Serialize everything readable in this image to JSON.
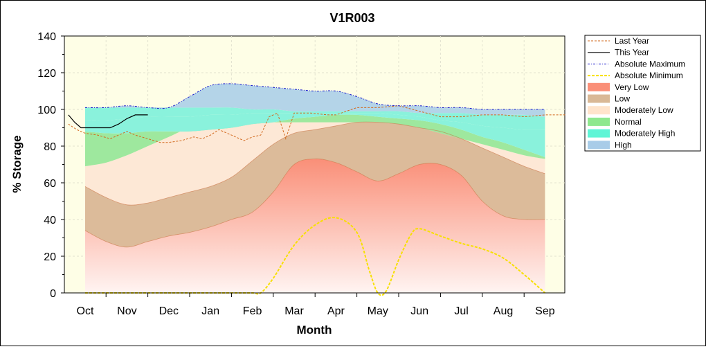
{
  "chart_data": {
    "type": "area",
    "title": "V1R003",
    "xlabel": "Month",
    "ylabel": "% Storage",
    "ylim": [
      0,
      140
    ],
    "yticks": [
      0,
      20,
      40,
      60,
      80,
      100,
      120,
      140
    ],
    "months": [
      "Oct",
      "Nov",
      "Dec",
      "Jan",
      "Feb",
      "Mar",
      "Apr",
      "May",
      "Jun",
      "Jul",
      "Aug",
      "Sep"
    ],
    "grid": true,
    "legend_position": "right",
    "band_x": [
      0,
      0.5,
      1,
      1.5,
      2,
      2.5,
      3,
      3.5,
      4,
      4.5,
      5,
      5.5,
      6,
      6.5,
      7,
      7.5,
      8,
      8.5,
      9,
      9.5,
      10,
      10.5,
      11
    ],
    "band_boundaries": {
      "b1": [
        34,
        28,
        25,
        28,
        31,
        33,
        36,
        40,
        44,
        55,
        70,
        73,
        71,
        66,
        61,
        65,
        70,
        70,
        64,
        50,
        42,
        40,
        40
      ],
      "b2": [
        58,
        52,
        48,
        49,
        52,
        55,
        58,
        63,
        72,
        81,
        87,
        89,
        91,
        93,
        93,
        92,
        90,
        88,
        84,
        79,
        74,
        69,
        65
      ],
      "b3": [
        69,
        71,
        75,
        80,
        85,
        90,
        92,
        93,
        93,
        93,
        93,
        93,
        93,
        93,
        93,
        92,
        90,
        87,
        84,
        81,
        78,
        75,
        73
      ],
      "b4": [
        88,
        87,
        87,
        88,
        88,
        88,
        89,
        90,
        92,
        93,
        95,
        96,
        97,
        97,
        96,
        95,
        94,
        92,
        89,
        85,
        82,
        78,
        74
      ],
      "b5": [
        94,
        94,
        95,
        96,
        96,
        96,
        97,
        97,
        98,
        98,
        98,
        98,
        98,
        98,
        98,
        97,
        96,
        94,
        93,
        91,
        90,
        89,
        89
      ],
      "b6": [
        101,
        101,
        101,
        101,
        101,
        101,
        101,
        101,
        100,
        100,
        99,
        99,
        99,
        99,
        99,
        99,
        98,
        98,
        98,
        97,
        97,
        97,
        96
      ],
      "b7": [
        101,
        101,
        102,
        101,
        101,
        107,
        113,
        114,
        113,
        112,
        111,
        110,
        110,
        107,
        103,
        102,
        102,
        101,
        101,
        100,
        100,
        100,
        100
      ]
    },
    "series": [
      {
        "name": "Last Year",
        "color": "#d2691e",
        "x": [
          -0.4,
          -0.2,
          0,
          0.3,
          0.6,
          0.8,
          1.0,
          1.2,
          1.5,
          1.8,
          2.0,
          2.3,
          2.6,
          2.8,
          3.0,
          3.2,
          3.5,
          3.8,
          4.0,
          4.2,
          4.4,
          4.6,
          4.8,
          5.0,
          5.4,
          5.8,
          6.0,
          6.5,
          7.0,
          7.5,
          8.0,
          8.5,
          9.0,
          9.5,
          10.0,
          10.5,
          11.0,
          11.5
        ],
        "y": [
          92,
          89,
          87,
          86,
          84,
          86,
          88,
          86,
          84,
          82,
          82,
          83,
          85,
          84,
          86,
          89,
          86,
          83,
          85,
          86,
          96,
          98,
          84,
          98,
          98,
          97,
          97,
          101,
          101,
          102,
          99,
          96,
          96,
          97,
          97,
          96,
          97,
          97
        ]
      },
      {
        "name": "This Year",
        "color": "#000000",
        "x": [
          -0.4,
          -0.25,
          -0.1,
          0,
          0.3,
          0.6,
          0.8,
          1.0,
          1.2,
          1.5
        ],
        "y": [
          97,
          93,
          90,
          90,
          90,
          90,
          92,
          95,
          97,
          97
        ]
      },
      {
        "name": "Absolute Maximum",
        "color": "#1a1acc",
        "x": [
          0,
          0.5,
          1,
          1.5,
          2,
          2.5,
          3,
          3.5,
          4,
          4.5,
          5,
          5.5,
          6,
          6.5,
          7,
          7.5,
          8,
          8.5,
          9,
          9.5,
          10,
          10.5,
          11
        ],
        "y": [
          101,
          101,
          102,
          101,
          101,
          107,
          113,
          114,
          113,
          112,
          111,
          110,
          110,
          107,
          103,
          102,
          102,
          101,
          101,
          100,
          100,
          100,
          100
        ]
      },
      {
        "name": "Absolute Minimum",
        "color": "#f7e000",
        "x": [
          0,
          0.5,
          1,
          1.5,
          2,
          2.5,
          3,
          3.5,
          4,
          4.2,
          4.5,
          5,
          5.5,
          6,
          6.5,
          6.8,
          7,
          7.2,
          7.5,
          7.8,
          8,
          8.5,
          9,
          9.5,
          10,
          10.5,
          11
        ],
        "y": [
          0,
          0,
          0,
          0,
          0,
          0,
          0,
          0,
          0,
          0,
          8,
          26,
          37,
          41,
          33,
          12,
          0,
          1,
          18,
          32,
          35,
          31,
          27,
          24,
          19,
          10,
          0
        ]
      }
    ],
    "legend": [
      {
        "label": "Last Year",
        "kind": "line",
        "color": "#d2691e",
        "dash": "3,2"
      },
      {
        "label": "This Year",
        "kind": "line",
        "color": "#000000",
        "dash": ""
      },
      {
        "label": "Absolute Maximum",
        "kind": "line",
        "color": "#1a1acc",
        "dash": "3,2,1,2"
      },
      {
        "label": "Absolute Minimum",
        "kind": "line",
        "color": "#f7e000",
        "dash": "4,2"
      },
      {
        "label": "Very Low",
        "kind": "fill",
        "color": "#fa8f78"
      },
      {
        "label": "Low",
        "kind": "fill",
        "color": "#d9b896"
      },
      {
        "label": "Moderately Low",
        "kind": "fill",
        "color": "#ffe4cc"
      },
      {
        "label": "Normal",
        "kind": "fill",
        "color": "#8ee88e"
      },
      {
        "label": "Moderately High",
        "kind": "fill",
        "color": "#5ff5d6"
      },
      {
        "label": "High",
        "kind": "fill",
        "color": "#a8cce8"
      }
    ],
    "colors": {
      "plot_background": "#fefee6",
      "very_low_top": "#fa8f78",
      "very_low_bottom": "#fff4f2",
      "low": "#dcbb9a",
      "moderately_low": "#fde8d6",
      "normal": "#9ee89e",
      "moderately_high": "#8af2dc",
      "high": "#b4d4e8",
      "boundary_line": "#c86a3c"
    }
  }
}
